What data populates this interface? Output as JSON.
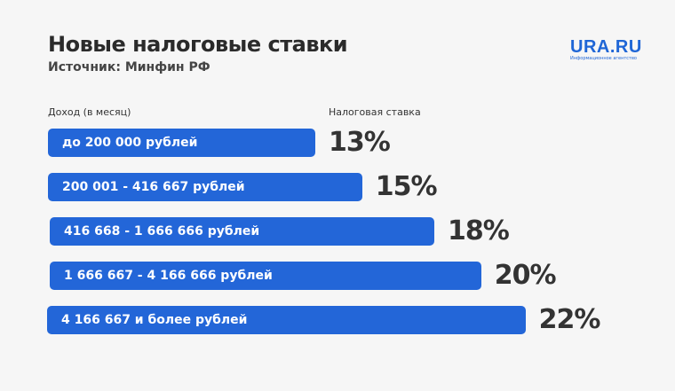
{
  "header": {
    "title": "Новые налоговые ставки",
    "subtitle": "Источник: Минфин РФ"
  },
  "logo": {
    "main": "URA.RU",
    "sub": "Информационное агентство"
  },
  "chart_data": {
    "type": "bar",
    "orientation": "horizontal",
    "category_header": "Доход (в месяц)",
    "value_header": "Налоговая ставка",
    "categories": [
      "до 200 000 рублей",
      "200 001 - 416 667 рублей",
      "416 668 - 1 666 666 рублей",
      "1 666 667 - 4 166 666 рублей",
      "4 166 667 и более рублей"
    ],
    "values": [
      13,
      15,
      18,
      20,
      22
    ],
    "value_labels": [
      "13%",
      "15%",
      "18%",
      "20%",
      "22%"
    ],
    "bar_color": "#2366d8"
  }
}
